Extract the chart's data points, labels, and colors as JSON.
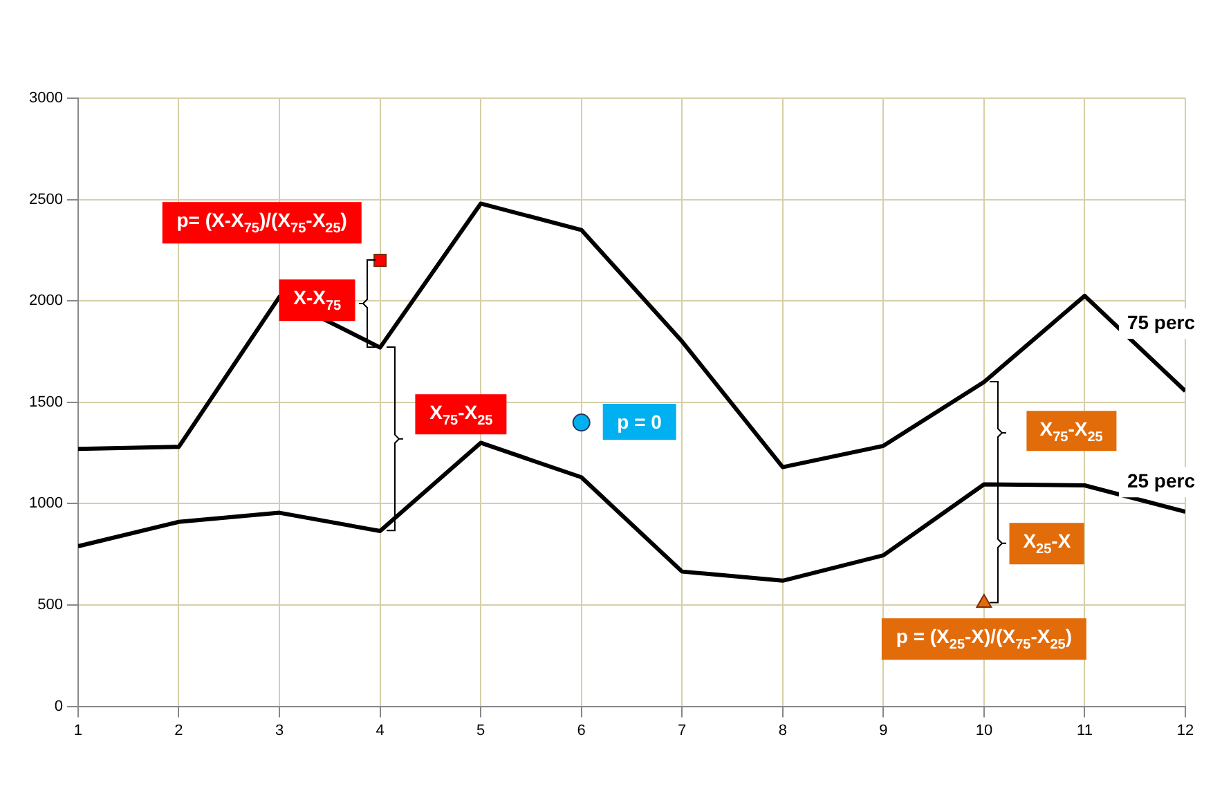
{
  "chart_data": {
    "type": "line",
    "x": [
      1,
      2,
      3,
      4,
      5,
      6,
      7,
      8,
      9,
      10,
      11,
      12
    ],
    "xlim": [
      1,
      12
    ],
    "xticks": [
      1,
      2,
      3,
      4,
      5,
      6,
      7,
      8,
      9,
      10,
      11,
      12
    ],
    "ylim": [
      0,
      3000
    ],
    "yticks": [
      0,
      500,
      1000,
      1500,
      2000,
      2500,
      3000
    ],
    "grid": true,
    "legend": false,
    "marker": "none",
    "line_style": "solid",
    "series": [
      {
        "name": "75 perc",
        "color": "#000000",
        "values": [
          1270,
          1280,
          2020,
          1770,
          2480,
          2350,
          1800,
          1180,
          1285,
          1600,
          2025,
          1555
        ]
      },
      {
        "name": "25 perc",
        "color": "#000000",
        "values": [
          790,
          910,
          955,
          865,
          1300,
          1130,
          665,
          620,
          745,
          1095,
          1090,
          960
        ]
      },
      {
        "type": "scatter",
        "x": [
          4
        ],
        "values": [
          2200
        ],
        "color": "#ff0000",
        "marker": "square"
      },
      {
        "type": "scatter",
        "x": [
          6
        ],
        "values": [
          1400
        ],
        "color": "#00b0f0",
        "marker": "circle"
      },
      {
        "type": "scatter",
        "x": [
          10
        ],
        "values": [
          510
        ],
        "color": "#e36c0a",
        "marker": "triangle"
      }
    ],
    "annotations": [
      "p= (X-X$_{75}$)/(X$_{75}$-X$_{25}$)",
      "X-X$_{75}$",
      "X$_{75}$-X$_{25}$",
      "p = 0",
      "X$_{75}$-X$_{25}$",
      "X$_{25}$-X",
      {
        "text": "p = (X$_{25}$-X)/(X$_{75}$-X$_{25}$)",
        "x": 10,
        "y": 510
      }
    ]
  }
}
